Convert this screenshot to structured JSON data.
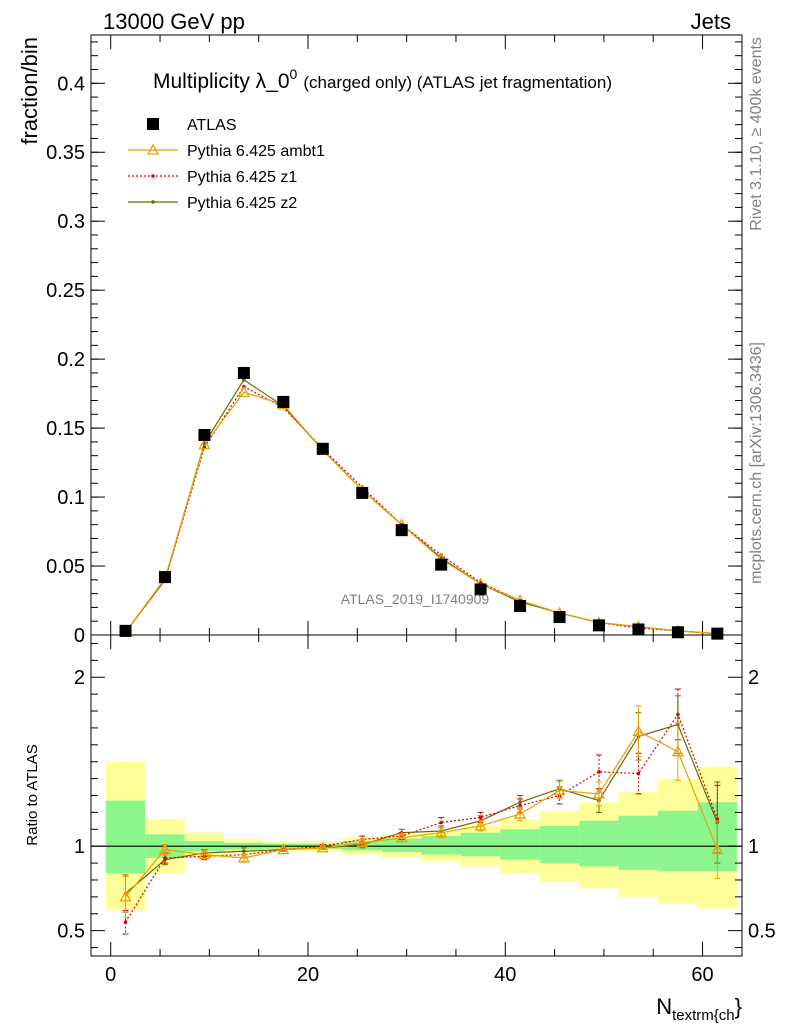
{
  "header": {
    "energy_label": "13000 GeV pp",
    "process_label": "Jets"
  },
  "side_labels": {
    "rivet": "Rivet 3.1.10, ≥ 400k events",
    "mcplots": "mcplots.cern.ch [arXiv:1306.3436]"
  },
  "chart_data": [
    {
      "type": "scatter",
      "title_main": "Multiplicity λ_0",
      "title_sup": "0",
      "title_rest": "(charged only) (ATLAS jet fragmentation)",
      "ylabel": "fraction/bin",
      "watermark": "ATLAS_2019_I1740909",
      "xlim": [
        -2,
        64
      ],
      "ylim": [
        0,
        0.435
      ],
      "yticks": [
        0,
        0.05,
        0.1,
        0.15,
        0.2,
        0.25,
        0.3,
        0.35,
        0.4
      ],
      "ytick_labels": [
        "0",
        "0.05",
        "0.1",
        "0.15",
        "0.2",
        "0.25",
        "0.3",
        "0.35",
        "0.4"
      ],
      "legend_position": "top-left",
      "x": [
        1.5,
        5.5,
        9.5,
        13.5,
        17.5,
        21.5,
        25.5,
        29.5,
        33.5,
        37.5,
        41.5,
        45.5,
        49.5,
        53.5,
        57.5,
        61.5
      ],
      "series": [
        {
          "name": "ATLAS",
          "color": "#000000",
          "marker": "square",
          "values": [
            0.003,
            0.042,
            0.145,
            0.19,
            0.169,
            0.135,
            0.103,
            0.076,
            0.051,
            0.033,
            0.021,
            0.013,
            0.007,
            0.004,
            0.002,
            0.001
          ]
        },
        {
          "name": "Pythia 6.425 ambt1",
          "color": "#e8a200",
          "marker": "triangle",
          "values": [
            0.002,
            0.041,
            0.138,
            0.176,
            0.167,
            0.134,
            0.105,
            0.08,
            0.055,
            0.037,
            0.025,
            0.016,
            0.009,
            0.006,
            0.003,
            0.001
          ]
        },
        {
          "name": "Pythia 6.425 z1",
          "color": "#dd0000",
          "marker": "dot",
          "dashed": true,
          "values": [
            0.002,
            0.04,
            0.136,
            0.18,
            0.165,
            0.135,
            0.107,
            0.08,
            0.058,
            0.038,
            0.025,
            0.016,
            0.009,
            0.005,
            0.003,
            0.001
          ]
        },
        {
          "name": "Pythia 6.425 z2",
          "color": "#6b6b00",
          "marker": "dot",
          "values": [
            0.002,
            0.04,
            0.139,
            0.185,
            0.166,
            0.134,
            0.105,
            0.08,
            0.056,
            0.037,
            0.024,
            0.016,
            0.009,
            0.006,
            0.003,
            0.001
          ]
        }
      ]
    },
    {
      "type": "line",
      "ylabel": "Ratio to ATLAS",
      "xlabel_main": "N",
      "xlabel_sub": "textrm{ch",
      "xlabel_end": "}",
      "xlim": [
        -2,
        64
      ],
      "ylim": [
        0.35,
        2.25
      ],
      "xticks": [
        0,
        20,
        40,
        60
      ],
      "xtick_labels": [
        "0",
        "20",
        "40",
        "60"
      ],
      "yticks": [
        0.5,
        1,
        2
      ],
      "ytick_labels": [
        "0.5",
        "1",
        "2"
      ],
      "bins": [
        [
          -0.5,
          3.5
        ],
        [
          3.5,
          7.5
        ],
        [
          7.5,
          11.5
        ],
        [
          11.5,
          15.5
        ],
        [
          15.5,
          19.5
        ],
        [
          19.5,
          23.5
        ],
        [
          23.5,
          27.5
        ],
        [
          27.5,
          31.5
        ],
        [
          31.5,
          35.5
        ],
        [
          35.5,
          39.5
        ],
        [
          39.5,
          43.5
        ],
        [
          43.5,
          47.5
        ],
        [
          47.5,
          51.5
        ],
        [
          51.5,
          55.5
        ],
        [
          55.5,
          59.5
        ],
        [
          59.5,
          63.5
        ]
      ],
      "band_inner": [
        [
          0.84,
          1.27
        ],
        [
          0.93,
          1.07
        ],
        [
          0.97,
          1.03
        ],
        [
          0.98,
          1.02
        ],
        [
          0.985,
          1.015
        ],
        [
          0.985,
          1.015
        ],
        [
          0.975,
          1.03
        ],
        [
          0.965,
          1.045
        ],
        [
          0.95,
          1.06
        ],
        [
          0.94,
          1.08
        ],
        [
          0.92,
          1.1
        ],
        [
          0.9,
          1.12
        ],
        [
          0.88,
          1.15
        ],
        [
          0.86,
          1.18
        ],
        [
          0.85,
          1.21
        ],
        [
          0.85,
          1.26
        ]
      ],
      "band_outer": [
        [
          0.62,
          1.5
        ],
        [
          0.84,
          1.16
        ],
        [
          0.93,
          1.08
        ],
        [
          0.96,
          1.04
        ],
        [
          0.97,
          1.03
        ],
        [
          0.97,
          1.03
        ],
        [
          0.95,
          1.05
        ],
        [
          0.93,
          1.07
        ],
        [
          0.91,
          1.09
        ],
        [
          0.88,
          1.12
        ],
        [
          0.84,
          1.16
        ],
        [
          0.79,
          1.21
        ],
        [
          0.75,
          1.26
        ],
        [
          0.7,
          1.32
        ],
        [
          0.66,
          1.4
        ],
        [
          0.63,
          1.47
        ]
      ],
      "band_colors": {
        "inner": "#8cf58c",
        "outer": "#ffff9a"
      },
      "x": [
        1.5,
        5.5,
        9.5,
        13.5,
        17.5,
        21.5,
        25.5,
        29.5,
        33.5,
        37.5,
        41.5,
        45.5,
        49.5,
        53.5,
        57.5,
        61.5
      ],
      "series": [
        {
          "name": "Pythia 6.425 ambt1",
          "color": "#e8a200",
          "marker": "triangle",
          "values": [
            0.7,
            0.98,
            0.95,
            0.93,
            0.98,
            0.99,
            1.02,
            1.05,
            1.08,
            1.12,
            1.19,
            1.33,
            1.31,
            1.68,
            1.56,
            0.98
          ],
          "errors": [
            0.12,
            0.03,
            0.02,
            0.02,
            0.01,
            0.01,
            0.02,
            0.02,
            0.03,
            0.03,
            0.04,
            0.05,
            0.07,
            0.15,
            0.17,
            0.17
          ]
        },
        {
          "name": "Pythia 6.425 z1",
          "color": "#dd0000",
          "marker": "dot",
          "dashed": true,
          "values": [
            0.55,
            0.93,
            0.94,
            0.95,
            0.98,
            1.0,
            1.04,
            1.06,
            1.14,
            1.17,
            1.24,
            1.3,
            1.44,
            1.43,
            1.78,
            1.16
          ],
          "errors": [
            0.07,
            0.03,
            0.02,
            0.02,
            0.01,
            0.01,
            0.02,
            0.02,
            0.03,
            0.03,
            0.04,
            0.05,
            0.1,
            0.12,
            0.15,
            0.2
          ]
        },
        {
          "name": "Pythia 6.425 z2",
          "color": "#6b6b00",
          "marker": "dot",
          "values": [
            0.72,
            0.92,
            0.96,
            0.97,
            0.98,
            0.99,
            1.01,
            1.08,
            1.09,
            1.15,
            1.26,
            1.34,
            1.27,
            1.65,
            1.72,
            1.14
          ],
          "errors": [
            0.11,
            0.03,
            0.02,
            0.02,
            0.01,
            0.01,
            0.02,
            0.02,
            0.03,
            0.03,
            0.04,
            0.05,
            0.07,
            0.14,
            0.17,
            0.24
          ]
        }
      ]
    }
  ]
}
